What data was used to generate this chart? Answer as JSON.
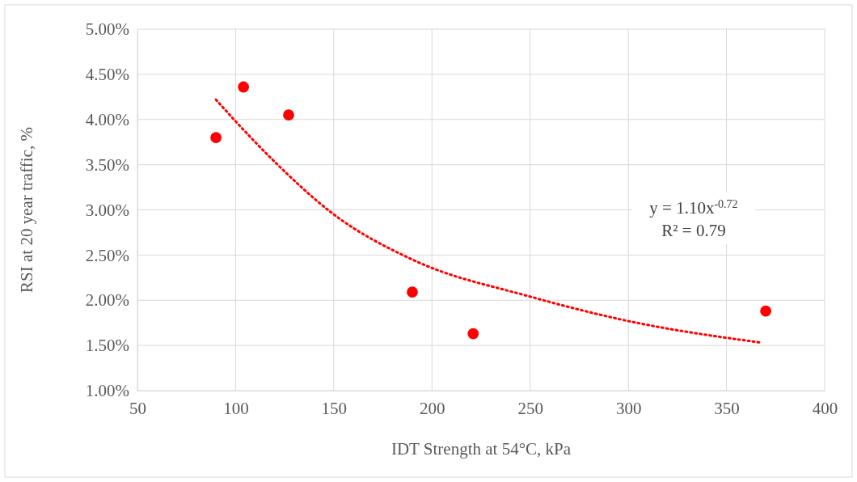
{
  "chart_data": {
    "type": "scatter",
    "xlabel": "IDT Strength at 54°C, kPa",
    "ylabel": "RSI at 20 year traffic, %",
    "xlim": [
      50,
      400
    ],
    "xticks": [
      50,
      100,
      150,
      200,
      250,
      300,
      350,
      400
    ],
    "ylim": [
      1,
      5
    ],
    "yticks": [
      {
        "value": 1,
        "label": "1.00%"
      },
      {
        "value": 1.5,
        "label": "1.50%"
      },
      {
        "value": 2,
        "label": "2.00%"
      },
      {
        "value": 2.5,
        "label": "2.50%"
      },
      {
        "value": 3,
        "label": "3.00%"
      },
      {
        "value": 3.5,
        "label": "3.50%"
      },
      {
        "value": 4,
        "label": "4.00%"
      },
      {
        "value": 4.5,
        "label": "4.50%"
      },
      {
        "value": 5,
        "label": "5.00%"
      }
    ],
    "grid": true,
    "series": [
      {
        "color": "#ff0000",
        "marker": "circle",
        "x": [
          90,
          104,
          127,
          190,
          221,
          370
        ],
        "values": [
          3.8,
          4.36,
          4.05,
          2.09,
          1.63,
          1.88
        ]
      },
      {
        "type": "line",
        "color": "#ff0000",
        "marker": "none",
        "line_style": "dotted",
        "x": [
          90,
          100,
          120,
          150,
          190,
          250,
          300,
          368
        ],
        "values": [
          4.22,
          3.98,
          3.53,
          2.95,
          2.45,
          2.04,
          1.77,
          1.53
        ]
      }
    ],
    "annotations": [
      "y = 1.10x$^{-0.72}$",
      "R² = 0.79"
    ]
  }
}
